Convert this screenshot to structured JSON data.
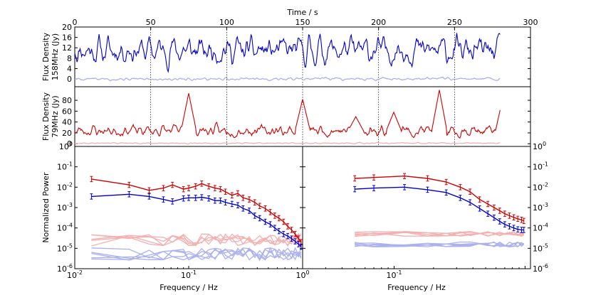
{
  "chart_data": [
    {
      "type": "line",
      "panel": "top-158MHz",
      "xlabel": "Time / s",
      "ylabel_lines": [
        "Flux Density",
        "158MHz (Jy)"
      ],
      "xlim": [
        0,
        300
      ],
      "ylim": [
        -3,
        20
      ],
      "x_ticks": [
        0,
        50,
        100,
        150,
        200,
        250,
        300
      ],
      "y_ticks": [
        0,
        4,
        8,
        12,
        16,
        20
      ],
      "vlines": [
        50,
        100,
        150,
        200,
        250
      ],
      "series": [
        {
          "color": "#0000cc",
          "t_end": 280,
          "mean": 11,
          "amp": 3.2,
          "seed": 11
        },
        {
          "color": "#aab0f0",
          "t_end": 280,
          "mean": 0,
          "amp": 0.35,
          "seed": 5
        }
      ]
    },
    {
      "type": "line",
      "panel": "middle-79MHz",
      "ylabel_lines": [
        "Flux Density",
        "79MHz (Jy)"
      ],
      "xlim": [
        0,
        300
      ],
      "ylim": [
        -5,
        105
      ],
      "y_ticks": [
        0,
        20,
        40,
        60,
        80
      ],
      "vlines": [
        50,
        100,
        150,
        200,
        250
      ],
      "peaks": [
        [
          75,
          93
        ],
        [
          150,
          82
        ],
        [
          240,
          99
        ],
        [
          210,
          58
        ],
        [
          185,
          50
        ]
      ],
      "end_value": [
        280,
        62
      ],
      "series": [
        {
          "color": "#cc0000",
          "t_end": 280,
          "mean": 24,
          "amp": 6.5,
          "seed": 23
        },
        {
          "color": "#f4b0b0",
          "t_end": 280,
          "mean": 1,
          "amp": 0.7,
          "seed": 9
        }
      ]
    },
    {
      "type": "scatter",
      "panel": "bottom-left-spectrum",
      "xlabel": "Frequency / Hz",
      "ylabel": "Normalized Power",
      "x_scale": "log",
      "y_scale": "log",
      "xlim": [
        0.01,
        1
      ],
      "ylim": [
        1e-06,
        1
      ],
      "y_tick_exps": [
        0,
        -1,
        -2,
        -3,
        -4,
        -5,
        -6
      ],
      "x_tick_exps": [
        -2,
        -1,
        0
      ],
      "series": [
        {
          "name": "",
          "color": "#cc0000",
          "points": [
            [
              0.014,
              0.025
            ],
            [
              0.03,
              0.013
            ],
            [
              0.045,
              0.007
            ],
            [
              0.06,
              0.009
            ],
            [
              0.072,
              0.013
            ],
            [
              0.09,
              0.008
            ],
            [
              0.1,
              0.009
            ],
            [
              0.115,
              0.011
            ],
            [
              0.13,
              0.015
            ],
            [
              0.15,
              0.011
            ],
            [
              0.17,
              0.009
            ],
            [
              0.19,
              0.008
            ],
            [
              0.21,
              0.006
            ],
            [
              0.24,
              0.004
            ],
            [
              0.27,
              0.005
            ],
            [
              0.3,
              0.003
            ],
            [
              0.34,
              0.0025
            ],
            [
              0.38,
              0.0018
            ],
            [
              0.42,
              0.0012
            ],
            [
              0.47,
              0.0009
            ],
            [
              0.52,
              0.0006
            ],
            [
              0.57,
              0.0004
            ],
            [
              0.62,
              0.0003
            ],
            [
              0.68,
              0.0002
            ],
            [
              0.74,
              0.00012
            ],
            [
              0.8,
              8e-05
            ],
            [
              0.86,
              5e-05
            ],
            [
              0.92,
              3e-05
            ],
            [
              0.97,
              2e-05
            ]
          ]
        },
        {
          "name": "",
          "color": "#0000cc",
          "points": [
            [
              0.014,
              0.0035
            ],
            [
              0.03,
              0.0045
            ],
            [
              0.045,
              0.0035
            ],
            [
              0.06,
              0.0025
            ],
            [
              0.072,
              0.002
            ],
            [
              0.09,
              0.0028
            ],
            [
              0.1,
              0.003
            ],
            [
              0.115,
              0.003
            ],
            [
              0.13,
              0.0032
            ],
            [
              0.15,
              0.0028
            ],
            [
              0.17,
              0.0022
            ],
            [
              0.19,
              0.0022
            ],
            [
              0.21,
              0.0018
            ],
            [
              0.24,
              0.0015
            ],
            [
              0.27,
              0.0013
            ],
            [
              0.3,
              0.0009
            ],
            [
              0.34,
              0.0007
            ],
            [
              0.38,
              0.0004
            ],
            [
              0.42,
              0.0003
            ],
            [
              0.47,
              0.0002
            ],
            [
              0.52,
              0.00015
            ],
            [
              0.57,
              0.0001
            ],
            [
              0.62,
              7e-05
            ],
            [
              0.68,
              5e-05
            ],
            [
              0.74,
              4e-05
            ],
            [
              0.8,
              3e-05
            ],
            [
              0.86,
              2.2e-05
            ],
            [
              0.92,
              1.6e-05
            ],
            [
              0.97,
              1.2e-05
            ]
          ]
        }
      ],
      "noise_sets": [
        {
          "color": "#f4b0b0",
          "count": 5,
          "seeds": [
            3,
            7,
            13,
            19,
            29
          ],
          "level": 3e-05
        },
        {
          "color": "#aab0f0",
          "count": 5,
          "seeds": [
            31,
            37,
            41,
            43,
            47
          ],
          "level": 6e-06
        }
      ]
    },
    {
      "type": "scatter",
      "panel": "bottom-right-spectrum",
      "xlabel": "Frequency / Hz",
      "x_scale": "log",
      "y_scale": "log",
      "xlim": [
        0.02,
        1.1
      ],
      "ylim": [
        1e-06,
        1
      ],
      "y_tick_exps": [
        0,
        -1,
        -2,
        -3,
        -4,
        -5,
        -6
      ],
      "x_tick_exps": [
        -1
      ],
      "series": [
        {
          "name": "",
          "color": "#cc0000",
          "points": [
            [
              0.05,
              0.027
            ],
            [
              0.07,
              0.03
            ],
            [
              0.12,
              0.035
            ],
            [
              0.18,
              0.027
            ],
            [
              0.25,
              0.018
            ],
            [
              0.32,
              0.01
            ],
            [
              0.38,
              0.006
            ],
            [
              0.45,
              0.0025
            ],
            [
              0.52,
              0.0015
            ],
            [
              0.58,
              0.001
            ],
            [
              0.64,
              0.0007
            ],
            [
              0.7,
              0.0005
            ],
            [
              0.76,
              0.0004
            ],
            [
              0.82,
              0.00033
            ],
            [
              0.88,
              0.00028
            ],
            [
              0.94,
              0.00025
            ],
            [
              0.98,
              0.00022
            ]
          ]
        },
        {
          "name": "",
          "color": "#0000cc",
          "points": [
            [
              0.05,
              0.008
            ],
            [
              0.07,
              0.009
            ],
            [
              0.12,
              0.01
            ],
            [
              0.18,
              0.0075
            ],
            [
              0.25,
              0.0055
            ],
            [
              0.32,
              0.003
            ],
            [
              0.38,
              0.0018
            ],
            [
              0.45,
              0.0009
            ],
            [
              0.52,
              0.0005
            ],
            [
              0.58,
              0.00032
            ],
            [
              0.64,
              0.00021
            ],
            [
              0.7,
              0.00015
            ],
            [
              0.76,
              0.00012
            ],
            [
              0.82,
              0.0001
            ],
            [
              0.88,
              8.5e-05
            ],
            [
              0.94,
              8e-05
            ],
            [
              0.98,
              8e-05
            ]
          ]
        }
      ],
      "noise_sets": [
        {
          "color": "#f4b0b0",
          "count": 5,
          "seeds": [
            2,
            4,
            6,
            8,
            10
          ],
          "level": 6e-05,
          "smooth": true
        },
        {
          "color": "#aab0f0",
          "count": 5,
          "seeds": [
            12,
            14,
            16,
            18,
            20
          ],
          "level": 1.8e-05,
          "smooth": true
        }
      ]
    }
  ]
}
